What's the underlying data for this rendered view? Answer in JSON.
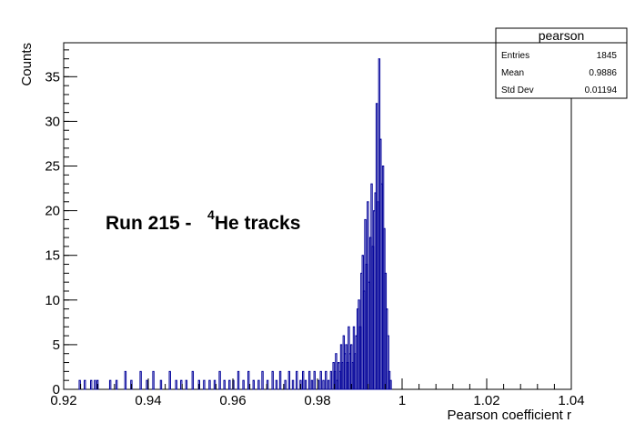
{
  "chart_data": {
    "type": "bar",
    "title": "",
    "xlabel": "Pearson coefficient r",
    "ylabel": "Counts",
    "xlim": [
      0.92,
      1.04
    ],
    "ylim": [
      0,
      38.8
    ],
    "grid": false,
    "xticks": [
      "0.92",
      "0.94",
      "0.96",
      "0.98",
      "1",
      "1.02",
      "1.04"
    ],
    "yticks": [
      "0",
      "5",
      "10",
      "15",
      "20",
      "25",
      "30",
      "35"
    ],
    "bin_width": 0.0003,
    "series_color": "#000099",
    "annotation": {
      "prefix": "Run 215 -   ",
      "superscript": "4",
      "suffix": "He tracks"
    },
    "stats": {
      "title": "pearson",
      "rows": [
        {
          "label": "Entries",
          "value": "1845"
        },
        {
          "label": "Mean",
          "value": "0.9886"
        },
        {
          "label": "Std Dev",
          "value": "0.01194"
        }
      ]
    },
    "bins": [
      [
        0.9238,
        1
      ],
      [
        0.925,
        1
      ],
      [
        0.9265,
        1
      ],
      [
        0.9274,
        1
      ],
      [
        0.928,
        1
      ],
      [
        0.931,
        1
      ],
      [
        0.9325,
        1
      ],
      [
        0.9346,
        2
      ],
      [
        0.936,
        1
      ],
      [
        0.9382,
        2
      ],
      [
        0.9397,
        1
      ],
      [
        0.9412,
        2
      ],
      [
        0.943,
        1
      ],
      [
        0.9451,
        2
      ],
      [
        0.9466,
        1
      ],
      [
        0.9478,
        1
      ],
      [
        0.949,
        1
      ],
      [
        0.9505,
        2
      ],
      [
        0.952,
        1
      ],
      [
        0.9532,
        1
      ],
      [
        0.9545,
        1
      ],
      [
        0.9557,
        1
      ],
      [
        0.9569,
        2
      ],
      [
        0.958,
        1
      ],
      [
        0.9592,
        1
      ],
      [
        0.9601,
        1
      ],
      [
        0.9613,
        2
      ],
      [
        0.9625,
        1
      ],
      [
        0.9637,
        2
      ],
      [
        0.9649,
        1
      ],
      [
        0.9661,
        1
      ],
      [
        0.967,
        2
      ],
      [
        0.9682,
        1
      ],
      [
        0.9694,
        2
      ],
      [
        0.9703,
        1
      ],
      [
        0.9712,
        2
      ],
      [
        0.9724,
        1
      ],
      [
        0.9733,
        2
      ],
      [
        0.9742,
        1
      ],
      [
        0.9751,
        2
      ],
      [
        0.976,
        1
      ],
      [
        0.9766,
        2
      ],
      [
        0.9772,
        1
      ],
      [
        0.9781,
        2
      ],
      [
        0.9787,
        1
      ],
      [
        0.9793,
        2
      ],
      [
        0.9802,
        1
      ],
      [
        0.9808,
        2
      ],
      [
        0.9814,
        1
      ],
      [
        0.982,
        2
      ],
      [
        0.9826,
        1
      ],
      [
        0.9832,
        2
      ],
      [
        0.9838,
        3
      ],
      [
        0.9841,
        2
      ],
      [
        0.9844,
        4
      ],
      [
        0.9847,
        1
      ],
      [
        0.985,
        3
      ],
      [
        0.9853,
        2
      ],
      [
        0.9856,
        5
      ],
      [
        0.9859,
        3
      ],
      [
        0.9862,
        6
      ],
      [
        0.9865,
        4
      ],
      [
        0.9868,
        5
      ],
      [
        0.9871,
        3
      ],
      [
        0.9874,
        7
      ],
      [
        0.9877,
        4
      ],
      [
        0.988,
        5
      ],
      [
        0.9883,
        3
      ],
      [
        0.9886,
        7
      ],
      [
        0.9889,
        4
      ],
      [
        0.9892,
        6
      ],
      [
        0.9895,
        9
      ],
      [
        0.9898,
        10
      ],
      [
        0.9901,
        7
      ],
      [
        0.9904,
        13
      ],
      [
        0.9907,
        15
      ],
      [
        0.991,
        11
      ],
      [
        0.9913,
        19
      ],
      [
        0.9916,
        14
      ],
      [
        0.9919,
        21
      ],
      [
        0.9922,
        12
      ],
      [
        0.9925,
        17
      ],
      [
        0.9928,
        23
      ],
      [
        0.9931,
        16
      ],
      [
        0.9934,
        20
      ],
      [
        0.9937,
        22
      ],
      [
        0.994,
        32
      ],
      [
        0.9943,
        21
      ],
      [
        0.9946,
        37
      ],
      [
        0.9949,
        28
      ],
      [
        0.9952,
        23
      ],
      [
        0.9955,
        25
      ],
      [
        0.9958,
        18
      ],
      [
        0.9961,
        13
      ],
      [
        0.9964,
        9
      ],
      [
        0.9967,
        6
      ],
      [
        0.997,
        2
      ],
      [
        0.9973,
        1
      ]
    ]
  }
}
